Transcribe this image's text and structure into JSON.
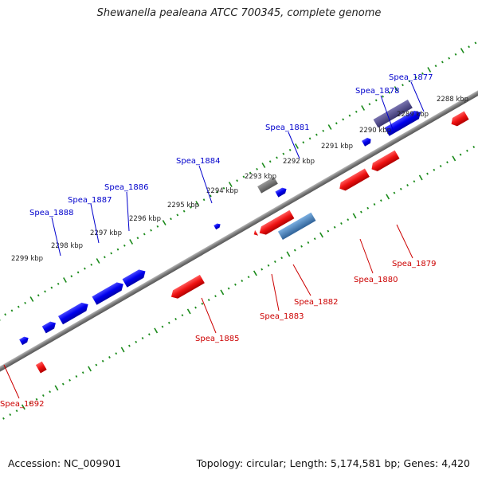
{
  "title": "Shewanella pealeana ATCC 700345, complete genome",
  "footer": {
    "accession": "Accession: NC_009901",
    "summary": "Topology: circular; Length: 5,174,581 bp; Genes: 4,420"
  },
  "colors": {
    "forward_gene": "#0000ee",
    "reverse_gene": "#ee1111",
    "backbone": "#808080",
    "tick": "#1a8a1a",
    "forward_label": "#0000cc",
    "reverse_label": "#cc0000",
    "grey_feature": "#707070",
    "purple_feature": "#55508a",
    "steelblue_feature": "#4a80b8"
  },
  "scale_labels": [
    "2288 kbp",
    "2289 kbp",
    "2290 kbp",
    "2291 kbp",
    "2292 kbp",
    "2293 kbp",
    "2294 kbp",
    "2295 kbp",
    "2296 kbp",
    "2297 kbp",
    "2298 kbp",
    "2299 kbp"
  ],
  "forward_genes": [
    "Spea_1877",
    "Spea_1878",
    "Spea_1881",
    "Spea_1884",
    "Spea_1886",
    "Spea_1887",
    "Spea_1888"
  ],
  "reverse_genes": [
    "Spea_1879",
    "Spea_1880",
    "Spea_1882",
    "Spea_1883",
    "Spea_1885",
    "Spea_1892"
  ]
}
